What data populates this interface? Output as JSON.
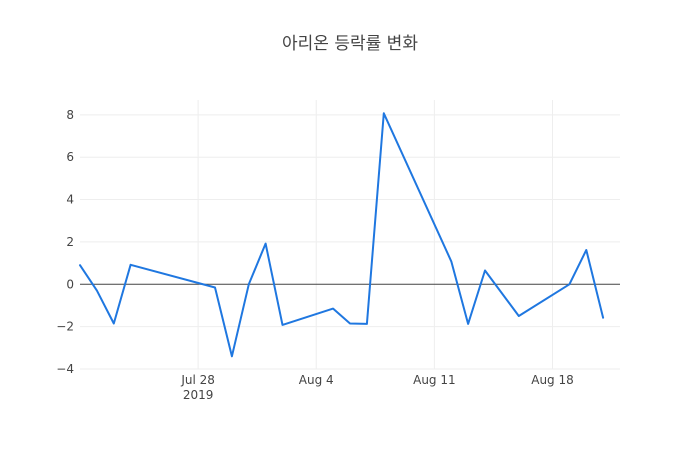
{
  "chart_data": {
    "type": "line",
    "title": "아리온 등락률 변화",
    "xlabel": "",
    "ylabel": "",
    "x_axis": {
      "type": "date",
      "range": [
        "2019-07-21",
        "2019-08-22"
      ],
      "tick_labels": [
        "Jul 28",
        "Aug 4",
        "Aug 11",
        "Aug 18"
      ],
      "tick_dates": [
        "2019-07-28",
        "2019-08-04",
        "2019-08-11",
        "2019-08-18"
      ],
      "year_label": "2019"
    },
    "y_axis": {
      "range": [
        -4,
        8.7
      ],
      "ticks": [
        -4,
        -2,
        0,
        2,
        4,
        6,
        8
      ],
      "tick_labels": [
        "−4",
        "−2",
        "0",
        "2",
        "4",
        "6",
        "8"
      ]
    },
    "grid": true,
    "zero_line": true,
    "series": [
      {
        "color": "#1f77e0",
        "points": [
          {
            "x": "2019-07-21",
            "y": 0.9
          },
          {
            "x": "2019-07-22",
            "y": -0.3
          },
          {
            "x": "2019-07-23",
            "y": -1.85
          },
          {
            "x": "2019-07-24",
            "y": 0.92
          },
          {
            "x": "2019-07-29",
            "y": -0.15
          },
          {
            "x": "2019-07-30",
            "y": -3.4
          },
          {
            "x": "2019-07-31",
            "y": 0.0
          },
          {
            "x": "2019-08-01",
            "y": 1.92
          },
          {
            "x": "2019-08-02",
            "y": -1.92
          },
          {
            "x": "2019-08-05",
            "y": -1.15
          },
          {
            "x": "2019-08-06",
            "y": -1.85
          },
          {
            "x": "2019-08-07",
            "y": -1.87
          },
          {
            "x": "2019-08-08",
            "y": 8.07
          },
          {
            "x": "2019-08-12",
            "y": 1.08
          },
          {
            "x": "2019-08-13",
            "y": -1.87
          },
          {
            "x": "2019-08-14",
            "y": 0.65
          },
          {
            "x": "2019-08-16",
            "y": -1.5
          },
          {
            "x": "2019-08-19",
            "y": 0.0
          },
          {
            "x": "2019-08-20",
            "y": 1.62
          },
          {
            "x": "2019-08-21",
            "y": -1.58
          }
        ]
      }
    ]
  }
}
